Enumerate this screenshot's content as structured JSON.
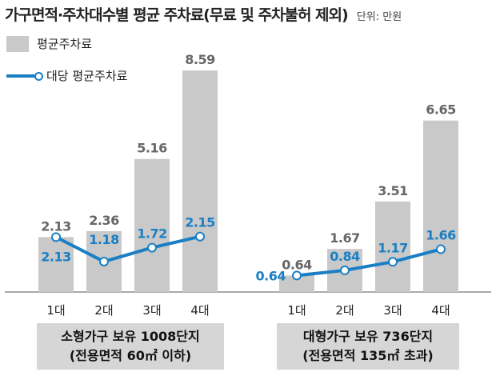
{
  "title": "가구면적·주차대수별 평균 주차료(무료 및 주차불허 제외)",
  "unit": "단위: 만원",
  "legend": {
    "bar": "평균주차료",
    "line": "대당 평균주차료"
  },
  "colors": {
    "bar": "#c9c9c9",
    "line": "#1a7fc4",
    "bar_label": "#666666"
  },
  "chart_data": [
    {
      "type": "bar",
      "group_label_line1": "소형가구 보유 1008단지",
      "group_label_line2": "(전용면적 60㎡ 이하)",
      "categories": [
        "1대",
        "2대",
        "3대",
        "4대"
      ],
      "series": [
        {
          "name": "평균주차료",
          "type": "bar",
          "values": [
            2.13,
            2.36,
            5.16,
            8.59
          ]
        },
        {
          "name": "대당 평균주차료",
          "type": "line",
          "values": [
            2.13,
            1.18,
            1.72,
            2.15
          ]
        }
      ],
      "ylim": [
        0,
        9
      ]
    },
    {
      "type": "bar",
      "group_label_line1": "대형가구 보유 736단지",
      "group_label_line2": "(전용면적 135㎡ 초과)",
      "categories": [
        "1대",
        "2대",
        "3대",
        "4대"
      ],
      "series": [
        {
          "name": "평균주차료",
          "type": "bar",
          "values": [
            0.64,
            1.67,
            3.51,
            6.65
          ]
        },
        {
          "name": "대당 평균주차료",
          "type": "line",
          "values": [
            0.64,
            0.84,
            1.17,
            1.66
          ]
        }
      ],
      "ylim": [
        0,
        9
      ]
    }
  ]
}
